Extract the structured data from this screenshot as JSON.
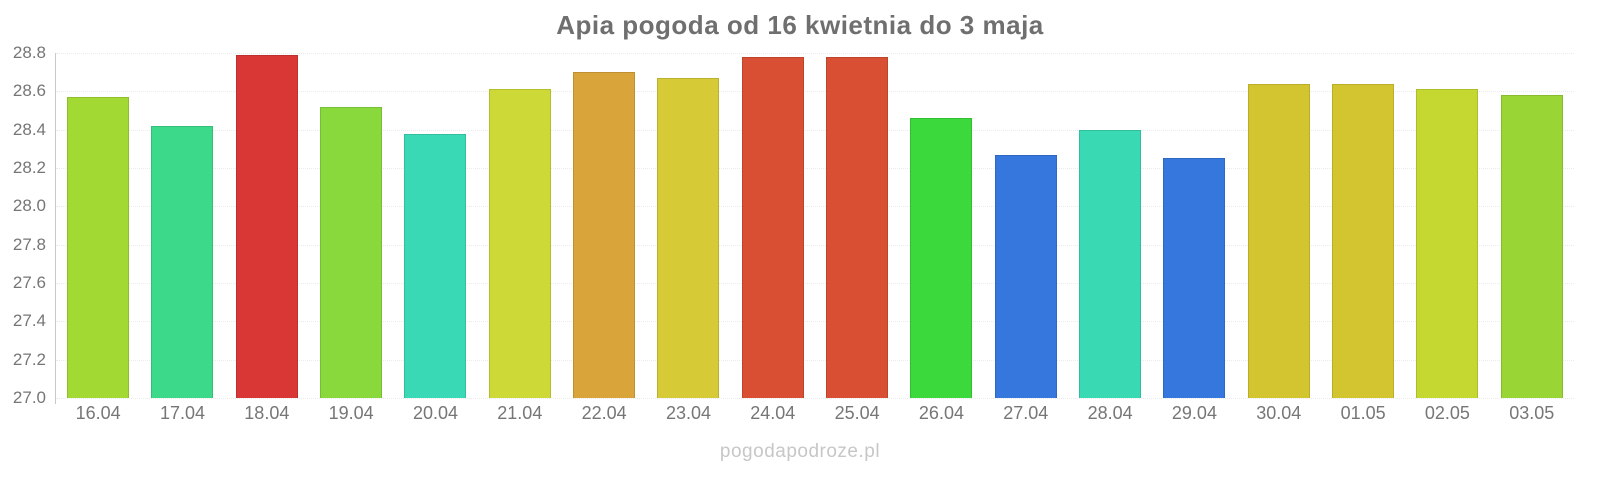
{
  "title": "Apia pogoda od 16 kwietnia do 3 maja",
  "watermark": "pogodapodroze.pl",
  "colors": {
    "background": "#ffffff",
    "title_text": "#6f6f6f",
    "axis_text": "#767676",
    "axis_line": "#c9c9c9",
    "gridline": "#ebebeb",
    "watermark_text": "#c7c7c7"
  },
  "chart_data": {
    "type": "bar",
    "title": "Apia pogoda od 16 kwietnia do 3 maja",
    "xlabel": "",
    "ylabel": "",
    "legend": "none",
    "grid": "horizontal-dotted",
    "ylim": [
      27.0,
      28.8
    ],
    "ytick_step": 0.2,
    "yticks_top_to_bottom": [
      "28.8",
      "28.6",
      "28.4",
      "28.2",
      "28.0",
      "27.8",
      "27.6",
      "27.4",
      "27.2",
      "27.0"
    ],
    "categories": [
      "16.04",
      "17.04",
      "18.04",
      "19.04",
      "20.04",
      "21.04",
      "22.04",
      "23.04",
      "24.04",
      "25.04",
      "26.04",
      "27.04",
      "28.04",
      "29.04",
      "30.04",
      "01.05",
      "02.05",
      "03.05"
    ],
    "values": [
      28.57,
      28.42,
      28.79,
      28.52,
      28.38,
      28.61,
      28.7,
      28.67,
      28.78,
      28.78,
      28.46,
      28.27,
      28.4,
      28.25,
      28.64,
      28.64,
      28.61,
      28.58
    ],
    "bar_colors": [
      "#a3d933",
      "#3dd98a",
      "#d93636",
      "#89d93c",
      "#39d9b6",
      "#cdd936",
      "#d9a439",
      "#d6ca36",
      "#d94f33",
      "#d94f33",
      "#3cd93c",
      "#3577dc",
      "#39d9b3",
      "#3577dc",
      "#d3c52f",
      "#d3c52f",
      "#c5d832",
      "#99d535"
    ]
  }
}
